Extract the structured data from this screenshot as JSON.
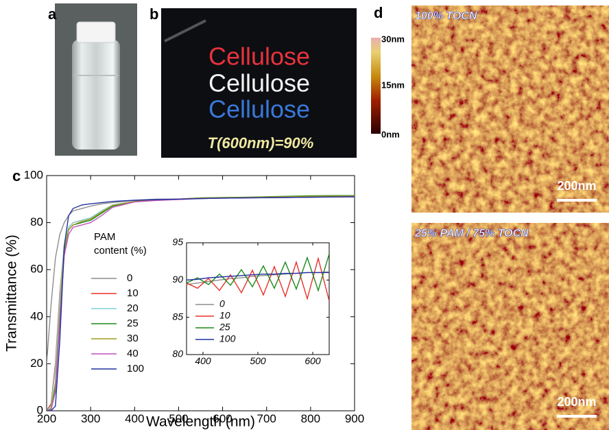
{
  "panel_labels": [
    "a",
    "b",
    "c",
    "d"
  ],
  "photo_b": {
    "words": [
      "Cellulose",
      "Cellulose",
      "Cellulose"
    ],
    "caption": "T(600nm)=90%"
  },
  "colorbar": {
    "labels": [
      "30nm",
      "15nm",
      "0nm"
    ]
  },
  "afm": [
    {
      "label": "100% TOCN",
      "scale_bar": "200nm"
    },
    {
      "label": "25% PAM / 75% TOCN",
      "scale_bar": "200nm"
    }
  ],
  "chart_data": [
    {
      "type": "line",
      "x_label": "Wavelength (nm)",
      "y_label": "Transmittance (%)",
      "legend_title": [
        "PAM",
        "content (%)"
      ],
      "xlim": [
        200,
        900
      ],
      "xticks": [
        200,
        300,
        400,
        500,
        600,
        700,
        800,
        900
      ],
      "ylim": [
        0,
        100
      ],
      "yticks": [
        0,
        20,
        40,
        60,
        80,
        100
      ],
      "x": [
        200,
        210,
        220,
        230,
        240,
        250,
        260,
        280,
        300,
        325,
        350,
        400,
        450,
        500,
        550,
        600,
        650,
        700,
        750,
        800,
        850,
        900
      ],
      "series": [
        {
          "name": "0",
          "color": "#8c8c8c",
          "values": [
            20,
            45,
            65,
            75,
            80,
            83,
            85,
            86,
            87,
            88,
            88.5,
            89.5,
            90,
            90,
            90.2,
            90.4,
            90.5,
            90.6,
            90.7,
            90.8,
            90.9,
            91
          ]
        },
        {
          "name": "10",
          "color": "#e8302a",
          "values": [
            0,
            3,
            20,
            50,
            70,
            78,
            80,
            81,
            82,
            85,
            87.5,
            89,
            89.5,
            90,
            90.5,
            90.5,
            90.6,
            90.7,
            90.8,
            90.9,
            91,
            91
          ]
        },
        {
          "name": "20",
          "color": "#7fd3d3",
          "values": [
            0,
            2,
            18,
            48,
            70,
            78,
            80,
            81,
            82,
            85,
            87.5,
            89,
            89.5,
            90,
            90.4,
            90.5,
            90.6,
            90.7,
            90.8,
            90.9,
            91,
            91
          ]
        },
        {
          "name": "25",
          "color": "#1a8a1a",
          "values": [
            0,
            1,
            10,
            40,
            68,
            77,
            79,
            80,
            81,
            84,
            87,
            89,
            89.6,
            90,
            90.5,
            90.7,
            90.8,
            91,
            91.2,
            91.4,
            91.5,
            91.5
          ]
        },
        {
          "name": "30",
          "color": "#9a9a1a",
          "values": [
            0,
            1,
            12,
            42,
            69,
            77,
            79,
            80.5,
            81.5,
            84.5,
            87.3,
            89,
            89.6,
            90,
            90.4,
            90.6,
            90.7,
            90.9,
            91,
            91.2,
            91.3,
            91.3
          ]
        },
        {
          "name": "40",
          "color": "#c050c0",
          "values": [
            0,
            0.5,
            8,
            38,
            66,
            75,
            78,
            79,
            80,
            83,
            86.5,
            88.8,
            89.4,
            89.8,
            90.2,
            90.4,
            90.5,
            90.6,
            90.7,
            90.8,
            90.9,
            91
          ]
        },
        {
          "name": "100",
          "color": "#2030a0",
          "values": [
            0,
            0,
            2,
            30,
            70,
            83,
            86,
            87.5,
            88,
            88.5,
            89,
            89.5,
            89.8,
            90,
            90.2,
            90.4,
            90.5,
            90.6,
            90.7,
            90.8,
            90.9,
            91
          ]
        }
      ]
    },
    {
      "type": "line",
      "xlim": [
        370,
        630
      ],
      "xticks": [
        400,
        500,
        600
      ],
      "ylim": [
        80,
        95
      ],
      "yticks": [
        80,
        85,
        90,
        95
      ],
      "x": [
        370,
        390,
        410,
        430,
        450,
        470,
        490,
        510,
        530,
        550,
        570,
        590,
        610,
        630
      ],
      "series": [
        {
          "name": "0",
          "color": "#8c8c8c",
          "values": [
            89.4,
            89.6,
            89.8,
            90.0,
            90.2,
            90.3,
            90.5,
            90.6,
            90.7,
            90.8,
            90.9,
            91.0,
            91.0,
            91.1
          ]
        },
        {
          "name": "10",
          "color": "#e8302a",
          "values": [
            89.6,
            88.9,
            90.2,
            88.6,
            90.7,
            88.3,
            91.3,
            88.0,
            91.8,
            87.8,
            92.4,
            87.5,
            92.9,
            87.2
          ]
        },
        {
          "name": "25",
          "color": "#1a8a1a",
          "values": [
            89.6,
            90.3,
            89.4,
            90.8,
            89.3,
            91.4,
            89.1,
            91.9,
            88.9,
            92.4,
            88.8,
            93.0,
            88.6,
            93.5
          ]
        },
        {
          "name": "100",
          "color": "#2030a0",
          "values": [
            90.0,
            90.1,
            90.3,
            90.4,
            90.5,
            90.6,
            90.7,
            90.8,
            90.8,
            90.9,
            90.9,
            91.0,
            91.0,
            91.0
          ]
        }
      ]
    }
  ]
}
